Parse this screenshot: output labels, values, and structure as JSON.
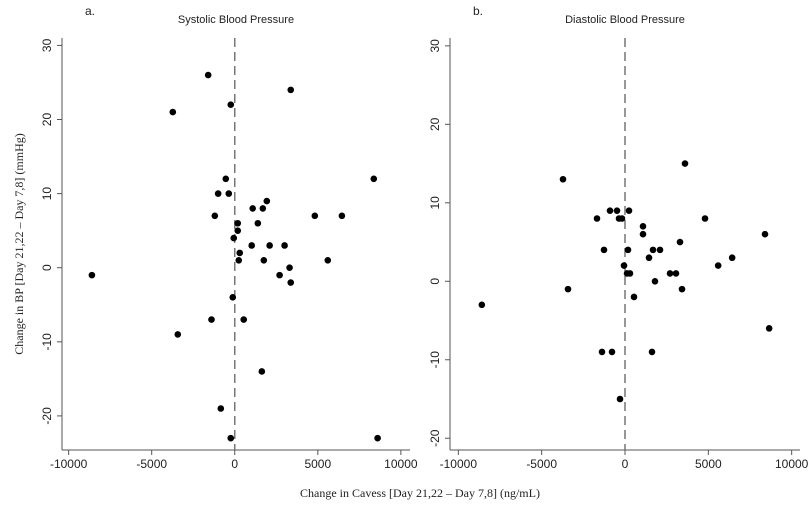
{
  "chart_data": [
    {
      "type": "scatter",
      "panel_label": "a.",
      "title": "Systolic Blood Pressure",
      "ylabel": "Change in BP [Day 21,22 – Day 7,8] (mmHg)",
      "xlabel": "Change in Cavess  [Day 21,22 – Day 7,8] (ng/mL)",
      "color": "#000000",
      "reference_x": 0,
      "x": [
        -1600,
        -3730,
        -240,
        3370,
        -8600,
        8370,
        8600,
        -540,
        -1000,
        -360,
        -1200,
        1080,
        1690,
        1930,
        1390,
        180,
        180,
        -60,
        240,
        300,
        1020,
        1750,
        2100,
        3000,
        2700,
        3300,
        3370,
        4820,
        6450,
        5600,
        -120,
        -1400,
        540,
        -3430,
        1630,
        -840,
        -240
      ],
      "values": [
        26,
        21,
        22,
        24,
        -1,
        12,
        -23,
        12,
        10,
        10,
        7,
        8,
        8,
        9,
        6,
        6,
        5,
        4,
        1,
        2,
        3,
        1,
        3,
        3,
        -1,
        0,
        -2,
        7,
        7,
        1,
        -4,
        -7,
        -7,
        -9,
        -14,
        -19,
        -23
      ],
      "xlim": [
        -10400,
        10550
      ],
      "ylim": [
        -24.6,
        31
      ],
      "xticks": [
        -10000,
        -5000,
        0,
        5000,
        10000
      ],
      "yticks": [
        -20,
        -10,
        0,
        10,
        20,
        30
      ]
    },
    {
      "type": "scatter",
      "panel_label": "b.",
      "title": "Diastolic Blood Pressure",
      "color": "#000000",
      "reference_x": 0,
      "x": [
        -8590,
        -3720,
        -3420,
        3600,
        -1680,
        -1260,
        -900,
        -480,
        -360,
        -180,
        240,
        180,
        -60,
        120,
        300,
        540,
        1080,
        1080,
        1440,
        1680,
        2100,
        1800,
        2700,
        3060,
        3300,
        3420,
        4800,
        5590,
        6430,
        8400,
        8650,
        -1380,
        -780,
        1620,
        -300
      ],
      "values": [
        -3,
        13,
        -1,
        15,
        8,
        4,
        9,
        9,
        8,
        8,
        9,
        4,
        2,
        1,
        1,
        -2,
        6,
        7,
        3,
        4,
        4,
        0,
        1,
        1,
        5,
        -1,
        8,
        2,
        3,
        6,
        -6,
        -9,
        -9,
        -9,
        -15
      ],
      "xlim": [
        -10500,
        10500
      ],
      "ylim": [
        -21.5,
        31
      ],
      "xticks": [
        -10000,
        -5000,
        0,
        5000,
        10000
      ],
      "yticks": [
        -20,
        -10,
        0,
        10,
        20,
        30
      ]
    }
  ]
}
